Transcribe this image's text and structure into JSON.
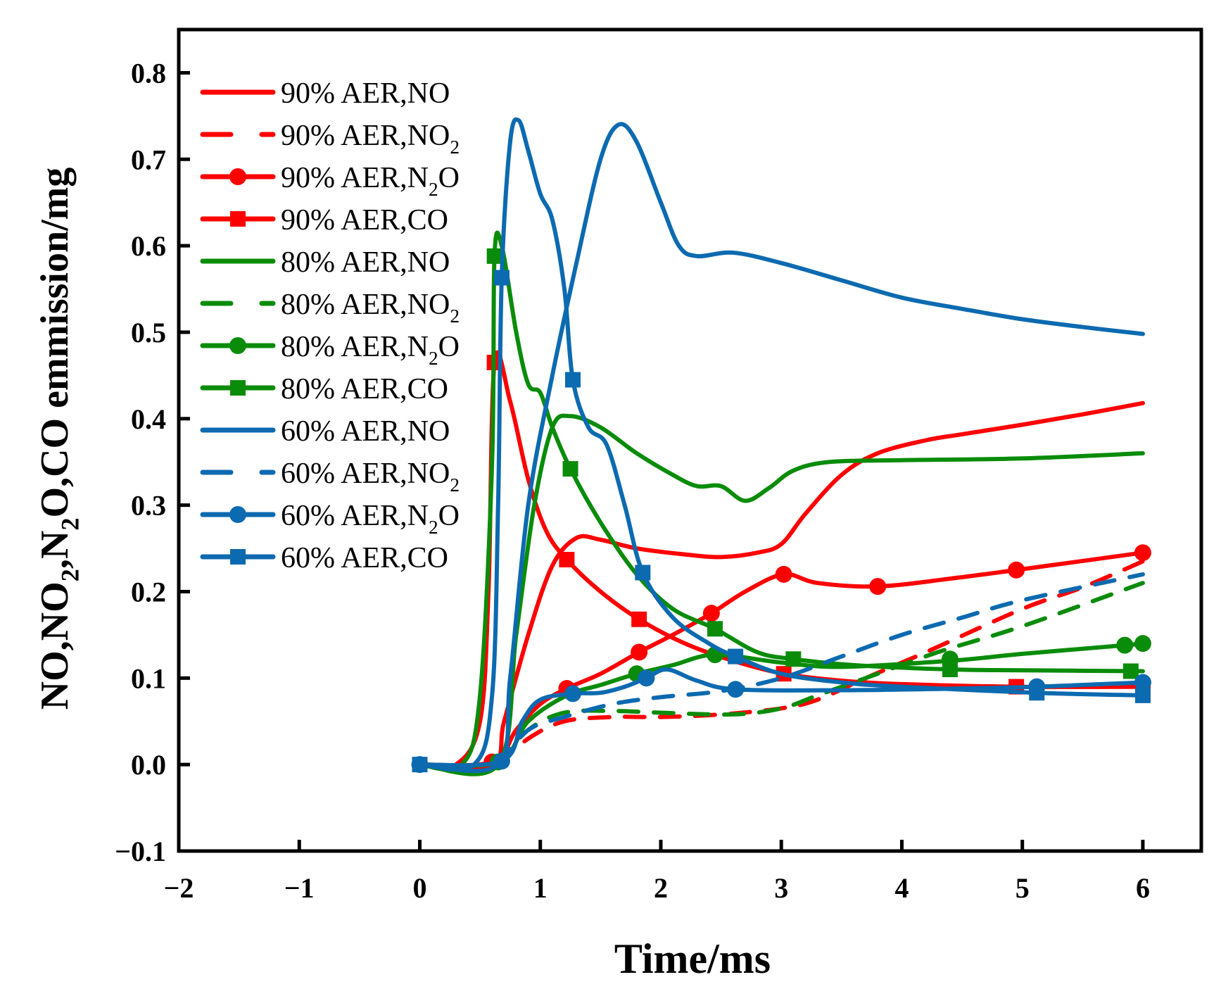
{
  "chart_data": {
    "type": "line",
    "title": "",
    "xlabel": "Time/ms",
    "ylabel": {
      "segments": [
        [
          "NO,NO",
          ""
        ],
        [
          "2",
          "sub"
        ],
        [
          ",N",
          ""
        ],
        [
          "2",
          "sub"
        ],
        [
          "O,CO emmission/mg",
          ""
        ]
      ]
    },
    "xlim": [
      -2,
      6.485
    ],
    "ylim": [
      -0.1,
      0.85
    ],
    "xticks": [
      -2,
      -1,
      0,
      1,
      2,
      3,
      4,
      5,
      6
    ],
    "xtick_labels": [
      "−2",
      "−1",
      "0",
      "1",
      "2",
      "3",
      "4",
      "5",
      "6"
    ],
    "yticks": [
      -0.1,
      0.0,
      0.1,
      0.2,
      0.3,
      0.4,
      0.5,
      0.6,
      0.7,
      0.8
    ],
    "ytick_labels": [
      "−0.1",
      "0.0",
      "0.1",
      "0.2",
      "0.3",
      "0.4",
      "0.5",
      "0.6",
      "0.7",
      "0.8"
    ],
    "grid": false,
    "legend_position": "top-left",
    "colors": {
      "90": "#FF0000",
      "80": "#0A8C0A",
      "60": "#0C6AB0"
    },
    "series": [
      {
        "name": "90% AER,NO",
        "label": {
          "text": "90% AER,NO",
          "sub": "",
          "tail": ""
        },
        "color": "#FF0000",
        "style": "solid",
        "marker": "none",
        "points": [
          [
            0,
            0
          ],
          [
            0.6,
            0
          ],
          [
            0.7,
            0.05
          ],
          [
            0.9,
            0.15
          ],
          [
            1.1,
            0.23
          ],
          [
            1.3,
            0.262
          ],
          [
            1.5,
            0.26
          ],
          [
            1.8,
            0.25
          ],
          [
            2.2,
            0.243
          ],
          [
            2.5,
            0.24
          ],
          [
            2.8,
            0.245
          ],
          [
            3.0,
            0.255
          ],
          [
            3.2,
            0.29
          ],
          [
            3.5,
            0.335
          ],
          [
            3.8,
            0.36
          ],
          [
            4.2,
            0.375
          ],
          [
            4.5,
            0.382
          ],
          [
            5,
            0.393
          ],
          [
            5.5,
            0.405
          ],
          [
            6,
            0.418
          ]
        ],
        "markers": []
      },
      {
        "name": "90% AER,NO2",
        "label": {
          "text": "90% AER,NO",
          "sub": "2",
          "tail": ""
        },
        "color": "#FF0000",
        "style": "dashed",
        "marker": "none",
        "points": [
          [
            0.65,
            0
          ],
          [
            0.9,
            0.03
          ],
          [
            1.2,
            0.05
          ],
          [
            1.6,
            0.055
          ],
          [
            2.0,
            0.055
          ],
          [
            2.5,
            0.058
          ],
          [
            3.0,
            0.065
          ],
          [
            3.3,
            0.075
          ],
          [
            3.7,
            0.1
          ],
          [
            4.2,
            0.13
          ],
          [
            5,
            0.18
          ],
          [
            5.5,
            0.205
          ],
          [
            6,
            0.235
          ]
        ],
        "markers": []
      },
      {
        "name": "90% AER,N2O",
        "label": {
          "text": "90% AER,N",
          "sub": "2",
          "tail": "O"
        },
        "color": "#FF0000",
        "style": "solid",
        "marker": "circle",
        "points": [
          [
            0,
            0
          ],
          [
            0.6,
            0.003
          ],
          [
            0.8,
            0.04
          ],
          [
            1.0,
            0.07
          ],
          [
            1.22,
            0.088
          ],
          [
            1.5,
            0.105
          ],
          [
            1.82,
            0.13
          ],
          [
            2.1,
            0.15
          ],
          [
            2.42,
            0.175
          ],
          [
            2.7,
            0.2
          ],
          [
            3.02,
            0.22
          ],
          [
            3.3,
            0.21
          ],
          [
            3.8,
            0.206
          ],
          [
            4.4,
            0.215
          ],
          [
            4.95,
            0.225
          ],
          [
            6,
            0.245
          ]
        ],
        "markers": [
          [
            0.6,
            0.003
          ],
          [
            1.22,
            0.088
          ],
          [
            1.82,
            0.13
          ],
          [
            2.42,
            0.175
          ],
          [
            3.02,
            0.22
          ],
          [
            3.8,
            0.206
          ],
          [
            4.95,
            0.225
          ],
          [
            6,
            0.245
          ]
        ]
      },
      {
        "name": "90% AER,CO",
        "label": {
          "text": "90% AER,CO",
          "sub": "",
          "tail": ""
        },
        "color": "#FF0000",
        "style": "solid",
        "marker": "square",
        "points": [
          [
            0,
            0
          ],
          [
            0.3,
            0
          ],
          [
            0.5,
            0.05
          ],
          [
            0.57,
            0.2
          ],
          [
            0.62,
            0.465
          ],
          [
            0.75,
            0.42
          ],
          [
            0.9,
            0.33
          ],
          [
            1.05,
            0.27
          ],
          [
            1.22,
            0.237
          ],
          [
            1.5,
            0.2
          ],
          [
            1.82,
            0.168
          ],
          [
            2.2,
            0.14
          ],
          [
            2.6,
            0.12
          ],
          [
            3.02,
            0.105
          ],
          [
            3.5,
            0.097
          ],
          [
            4,
            0.093
          ],
          [
            4.95,
            0.09
          ],
          [
            6,
            0.09
          ]
        ],
        "markers": [
          [
            0.62,
            0.465
          ],
          [
            1.22,
            0.237
          ],
          [
            1.82,
            0.168
          ],
          [
            3.02,
            0.105
          ],
          [
            4.95,
            0.09
          ],
          [
            6,
            0.09
          ]
        ]
      },
      {
        "name": "80% AER,NO",
        "label": {
          "text": "80% AER,NO",
          "sub": "",
          "tail": ""
        },
        "color": "#0A8C0A",
        "style": "solid",
        "marker": "none",
        "points": [
          [
            0,
            0
          ],
          [
            0.65,
            0
          ],
          [
            0.8,
            0.15
          ],
          [
            0.95,
            0.3
          ],
          [
            1.1,
            0.39
          ],
          [
            1.25,
            0.403
          ],
          [
            1.5,
            0.39
          ],
          [
            1.8,
            0.36
          ],
          [
            2.1,
            0.335
          ],
          [
            2.3,
            0.322
          ],
          [
            2.5,
            0.322
          ],
          [
            2.7,
            0.305
          ],
          [
            2.9,
            0.32
          ],
          [
            3.1,
            0.34
          ],
          [
            3.4,
            0.35
          ],
          [
            4,
            0.352
          ],
          [
            5,
            0.354
          ],
          [
            6,
            0.36
          ]
        ],
        "markers": []
      },
      {
        "name": "80% AER,NO2",
        "label": {
          "text": "80% AER,NO",
          "sub": "2",
          "tail": ""
        },
        "color": "#0A8C0A",
        "style": "dashed",
        "marker": "none",
        "points": [
          [
            0.65,
            0
          ],
          [
            0.9,
            0.04
          ],
          [
            1.2,
            0.06
          ],
          [
            1.6,
            0.062
          ],
          [
            2.0,
            0.06
          ],
          [
            2.6,
            0.058
          ],
          [
            3.0,
            0.065
          ],
          [
            3.3,
            0.08
          ],
          [
            3.7,
            0.1
          ],
          [
            4.3,
            0.13
          ],
          [
            5,
            0.16
          ],
          [
            6,
            0.21
          ]
        ],
        "markers": []
      },
      {
        "name": "80% AER,N2O",
        "label": {
          "text": "80% AER,N",
          "sub": "2",
          "tail": "O"
        },
        "color": "#0A8C0A",
        "style": "solid",
        "marker": "circle",
        "points": [
          [
            0,
            0
          ],
          [
            0.65,
            0.003
          ],
          [
            0.9,
            0.05
          ],
          [
            1.22,
            0.08
          ],
          [
            1.5,
            0.092
          ],
          [
            1.8,
            0.105
          ],
          [
            2.1,
            0.115
          ],
          [
            2.45,
            0.127
          ],
          [
            3,
            0.118
          ],
          [
            3.5,
            0.113
          ],
          [
            4.4,
            0.12
          ],
          [
            5,
            0.128
          ],
          [
            5.85,
            0.138
          ],
          [
            6,
            0.14
          ]
        ],
        "markers": [
          [
            0.65,
            0.003
          ],
          [
            1.8,
            0.105
          ],
          [
            2.45,
            0.127
          ],
          [
            4.4,
            0.122
          ],
          [
            5.85,
            0.138
          ],
          [
            6,
            0.14
          ]
        ]
      },
      {
        "name": "80% AER,CO",
        "label": {
          "text": "80% AER,CO",
          "sub": "",
          "tail": ""
        },
        "color": "#0A8C0A",
        "style": "solid",
        "marker": "square",
        "points": [
          [
            0,
            0
          ],
          [
            0.35,
            0
          ],
          [
            0.5,
            0.08
          ],
          [
            0.6,
            0.35
          ],
          [
            0.62,
            0.588
          ],
          [
            0.68,
            0.6
          ],
          [
            0.8,
            0.5
          ],
          [
            0.9,
            0.44
          ],
          [
            1.0,
            0.43
          ],
          [
            1.1,
            0.39
          ],
          [
            1.25,
            0.342
          ],
          [
            1.5,
            0.28
          ],
          [
            1.8,
            0.22
          ],
          [
            2.1,
            0.18
          ],
          [
            2.45,
            0.157
          ],
          [
            2.8,
            0.13
          ],
          [
            3.1,
            0.122
          ],
          [
            3.6,
            0.115
          ],
          [
            4.4,
            0.11
          ],
          [
            5,
            0.109
          ],
          [
            6,
            0.108
          ]
        ],
        "markers": [
          [
            0.62,
            0.588
          ],
          [
            1.25,
            0.342
          ],
          [
            2.45,
            0.157
          ],
          [
            3.1,
            0.122
          ],
          [
            4.4,
            0.11
          ],
          [
            5.9,
            0.108
          ]
        ]
      },
      {
        "name": "60% AER,NO",
        "label": {
          "text": "60% AER,NO",
          "sub": "",
          "tail": ""
        },
        "color": "#0C6AB0",
        "style": "solid",
        "marker": "none",
        "points": [
          [
            0,
            0
          ],
          [
            0.65,
            0
          ],
          [
            0.75,
            0.1
          ],
          [
            0.9,
            0.3
          ],
          [
            1.1,
            0.45
          ],
          [
            1.3,
            0.58
          ],
          [
            1.5,
            0.7
          ],
          [
            1.65,
            0.74
          ],
          [
            1.8,
            0.72
          ],
          [
            2.0,
            0.65
          ],
          [
            2.15,
            0.6
          ],
          [
            2.3,
            0.588
          ],
          [
            2.6,
            0.592
          ],
          [
            3,
            0.58
          ],
          [
            3.5,
            0.56
          ],
          [
            4,
            0.54
          ],
          [
            4.5,
            0.527
          ],
          [
            5,
            0.515
          ],
          [
            5.5,
            0.506
          ],
          [
            6,
            0.498
          ]
        ],
        "markers": []
      },
      {
        "name": "60% AER,NO2",
        "label": {
          "text": "60% AER,NO",
          "sub": "2",
          "tail": ""
        },
        "color": "#0C6AB0",
        "style": "dashed",
        "marker": "none",
        "points": [
          [
            0.65,
            0
          ],
          [
            0.9,
            0.04
          ],
          [
            1.2,
            0.055
          ],
          [
            1.6,
            0.07
          ],
          [
            2.0,
            0.078
          ],
          [
            2.5,
            0.085
          ],
          [
            3.0,
            0.1
          ],
          [
            3.5,
            0.125
          ],
          [
            4,
            0.15
          ],
          [
            4.5,
            0.17
          ],
          [
            5,
            0.19
          ],
          [
            6,
            0.22
          ]
        ],
        "markers": []
      },
      {
        "name": "60% AER,N2O",
        "label": {
          "text": "60% AER,N",
          "sub": "2",
          "tail": "O"
        },
        "color": "#0C6AB0",
        "style": "solid",
        "marker": "circle",
        "points": [
          [
            0,
            0
          ],
          [
            0.68,
            0.004
          ],
          [
            0.85,
            0.05
          ],
          [
            1.0,
            0.075
          ],
          [
            1.27,
            0.082
          ],
          [
            1.5,
            0.083
          ],
          [
            1.7,
            0.09
          ],
          [
            1.88,
            0.1
          ],
          [
            2.05,
            0.11
          ],
          [
            2.3,
            0.097
          ],
          [
            2.62,
            0.087
          ],
          [
            3.5,
            0.086
          ],
          [
            4.5,
            0.088
          ],
          [
            5.12,
            0.09
          ],
          [
            6,
            0.095
          ]
        ],
        "markers": [
          [
            0,
            0
          ],
          [
            0.68,
            0.004
          ],
          [
            1.27,
            0.082
          ],
          [
            1.88,
            0.1
          ],
          [
            2.62,
            0.087
          ],
          [
            5.12,
            0.09
          ],
          [
            6,
            0.095
          ]
        ]
      },
      {
        "name": "60% AER,CO",
        "label": {
          "text": "60% AER,CO",
          "sub": "",
          "tail": ""
        },
        "color": "#0C6AB0",
        "style": "solid",
        "marker": "square",
        "points": [
          [
            0,
            0
          ],
          [
            0.45,
            0
          ],
          [
            0.6,
            0.08
          ],
          [
            0.65,
            0.3
          ],
          [
            0.68,
            0.563
          ],
          [
            0.75,
            0.72
          ],
          [
            0.82,
            0.745
          ],
          [
            0.9,
            0.71
          ],
          [
            1.0,
            0.66
          ],
          [
            1.1,
            0.63
          ],
          [
            1.2,
            0.55
          ],
          [
            1.27,
            0.445
          ],
          [
            1.4,
            0.39
          ],
          [
            1.55,
            0.37
          ],
          [
            1.7,
            0.3
          ],
          [
            1.85,
            0.222
          ],
          [
            2.1,
            0.17
          ],
          [
            2.4,
            0.14
          ],
          [
            2.62,
            0.125
          ],
          [
            3,
            0.105
          ],
          [
            3.5,
            0.095
          ],
          [
            4,
            0.09
          ],
          [
            5.12,
            0.083
          ],
          [
            6,
            0.08
          ]
        ],
        "markers": [
          [
            0,
            0
          ],
          [
            0.68,
            0.563
          ],
          [
            1.27,
            0.445
          ],
          [
            1.85,
            0.222
          ],
          [
            2.62,
            0.125
          ],
          [
            5.12,
            0.083
          ],
          [
            6,
            0.08
          ]
        ]
      }
    ]
  }
}
